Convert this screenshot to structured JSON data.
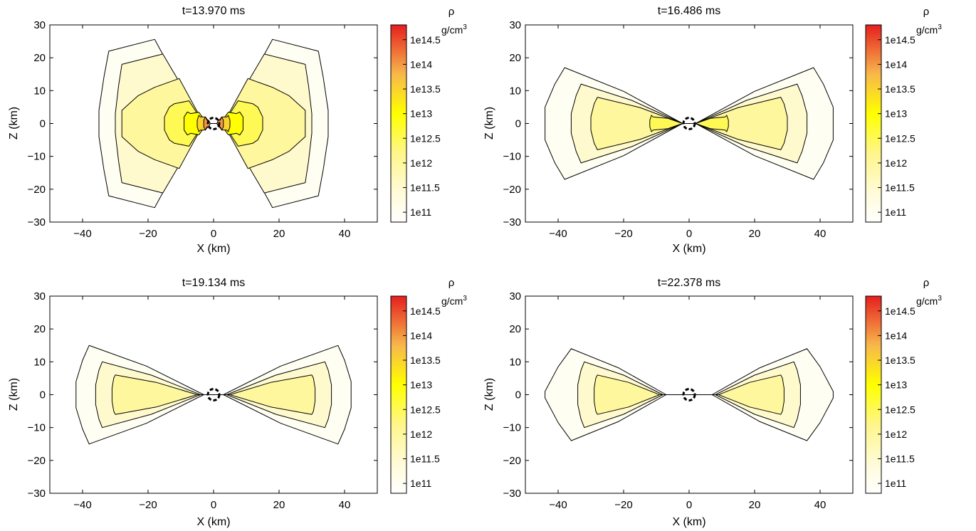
{
  "chart_data": [
    {
      "type": "heatmap",
      "title": "t=13.970 ms",
      "xlabel": "X (km)",
      "ylabel": "Z (km)",
      "xlim": [
        -50,
        50
      ],
      "ylim": [
        -30,
        30
      ],
      "xticks": [
        -40,
        -20,
        0,
        20,
        40
      ],
      "yticks": [
        -30,
        -20,
        -10,
        0,
        10,
        20,
        30
      ],
      "xtick_labels": [
        "−40",
        "−20",
        "0",
        "20",
        "40"
      ],
      "ytick_labels": [
        "−30",
        "−20",
        "−10",
        "0",
        "10",
        "20",
        "30"
      ],
      "contours": [
        {
          "level": "1e11",
          "half_width": [
            4,
            32,
            35
          ],
          "half_height": [
            30,
            22,
            4
          ]
        },
        {
          "level": "1e11.5",
          "half_width": [
            3,
            28,
            30
          ],
          "half_height": [
            25,
            18,
            3
          ]
        },
        {
          "level": "1e12",
          "half_width": [
            3,
            18,
            28
          ],
          "half_height": [
            17,
            11,
            4
          ]
        },
        {
          "level": "1e12.5",
          "half_width": [
            3,
            12,
            15
          ],
          "half_height": [
            8,
            6,
            2
          ]
        },
        {
          "level": "1e13",
          "half_width": [
            2,
            7,
            9
          ],
          "half_height": [
            4,
            3,
            2
          ]
        },
        {
          "level": "1e13.5",
          "half_width": [
            1,
            4,
            5
          ],
          "half_height": [
            2,
            2,
            1
          ]
        },
        {
          "level": "1e14",
          "half_width": [
            1,
            2,
            3
          ],
          "half_height": [
            1,
            1,
            1
          ]
        }
      ],
      "has_central_dashed_circle": true,
      "grid": false
    },
    {
      "type": "heatmap",
      "title": "t=16.486 ms",
      "xlabel": "X (km)",
      "ylabel": "Z (km)",
      "xlim": [
        -50,
        50
      ],
      "ylim": [
        -30,
        30
      ],
      "xticks": [
        -40,
        -20,
        0,
        20,
        40
      ],
      "yticks": [
        -30,
        -20,
        -10,
        0,
        10,
        20,
        30
      ],
      "xtick_labels": [
        "−40",
        "−20",
        "0",
        "20",
        "40"
      ],
      "ytick_labels": [
        "−30",
        "−20",
        "−10",
        "0",
        "10",
        "20",
        "30"
      ],
      "contours": [
        {
          "level": "1e11",
          "half_width": [
            2,
            38,
            44
          ],
          "half_height": [
            1,
            17,
            5
          ]
        },
        {
          "level": "1e11.5",
          "half_width": [
            2,
            33,
            36
          ],
          "half_height": [
            1,
            12,
            3
          ]
        },
        {
          "level": "1e12",
          "half_width": [
            2,
            28,
            30
          ],
          "half_height": [
            1,
            8,
            2
          ]
        },
        {
          "level": "1e12.5",
          "half_width": [
            2,
            11,
            12
          ],
          "half_height": [
            1,
            2,
            1
          ]
        }
      ],
      "has_central_dashed_circle": true,
      "grid": false
    },
    {
      "type": "heatmap",
      "title": "t=19.134 ms",
      "xlabel": "X (km)",
      "ylabel": "Z (km)",
      "xlim": [
        -50,
        50
      ],
      "ylim": [
        -30,
        30
      ],
      "xticks": [
        -40,
        -20,
        0,
        20,
        40
      ],
      "yticks": [
        -30,
        -20,
        -10,
        0,
        10,
        20,
        30
      ],
      "xtick_labels": [
        "−40",
        "−20",
        "0",
        "20",
        "40"
      ],
      "ytick_labels": [
        "−30",
        "−20",
        "−10",
        "0",
        "10",
        "20",
        "30"
      ],
      "contours": [
        {
          "level": "1e11",
          "half_width": [
            3,
            38,
            42
          ],
          "half_height": [
            1,
            15,
            4
          ]
        },
        {
          "level": "1e11.5",
          "half_width": [
            4,
            34,
            36
          ],
          "half_height": [
            1,
            10,
            3
          ]
        },
        {
          "level": "1e12",
          "half_width": [
            5,
            30,
            31
          ],
          "half_height": [
            1,
            6,
            2
          ]
        }
      ],
      "has_central_dashed_circle": true,
      "grid": false
    },
    {
      "type": "heatmap",
      "title": "t=22.378 ms",
      "xlabel": "X (km)",
      "ylabel": "Z (km)",
      "xlim": [
        -50,
        50
      ],
      "ylim": [
        -30,
        30
      ],
      "xticks": [
        -40,
        -20,
        0,
        20,
        40
      ],
      "yticks": [
        -30,
        -20,
        -10,
        0,
        10,
        20,
        30
      ],
      "xtick_labels": [
        "−40",
        "−20",
        "0",
        "20",
        "40"
      ],
      "ytick_labels": [
        "−30",
        "−20",
        "−10",
        "0",
        "10",
        "20",
        "30"
      ],
      "contours": [
        {
          "level": "1e11",
          "half_width": [
            7,
            36,
            44
          ],
          "half_height": [
            1,
            14,
            1
          ]
        },
        {
          "level": "1e11.5",
          "half_width": [
            8,
            32,
            34
          ],
          "half_height": [
            1,
            10,
            3
          ]
        },
        {
          "level": "1e12",
          "half_width": [
            9,
            28,
            29
          ],
          "half_height": [
            1,
            6,
            2
          ]
        }
      ],
      "has_central_dashed_circle": true,
      "grid": false
    }
  ],
  "colorbar": {
    "symbol": "ρ",
    "unit_base": "g/cm",
    "unit_exp": "3",
    "tick_labels": [
      "1e11",
      "1e11.5",
      "1e12",
      "1e12.5",
      "1e13",
      "1e13.5",
      "1e14",
      "1e14.5"
    ],
    "range_log10": [
      10.8,
      14.8
    ],
    "ticks_log10": [
      11,
      11.5,
      12,
      12.5,
      13,
      13.5,
      14,
      14.5
    ]
  },
  "colors": {
    "low": "#fffff2",
    "mid_low": "#fff3a0",
    "mid": "#ffff00",
    "mid_high": "#f7b84b",
    "high": "#e51f1f"
  }
}
